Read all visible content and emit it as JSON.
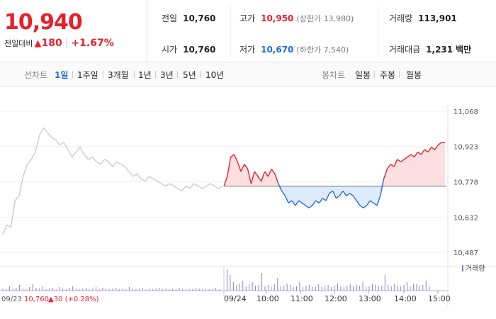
{
  "header": {
    "price": "10,940",
    "change_label": "전일대비",
    "change_arrow": "▲",
    "change_value": "180",
    "change_pct": "+1.67%",
    "prev_close_label": "전일",
    "prev_close": "10,760",
    "open_label": "시가",
    "open": "10,760",
    "high_label": "고가",
    "high": "10,950",
    "upper_limit_label": "(상한가",
    "upper_limit": "13,980)",
    "low_label": "저가",
    "low": "10,670",
    "lower_limit_label": "(하한가",
    "lower_limit": "7,540)",
    "volume_label": "거래량",
    "volume": "113,901",
    "amount_label": "거래대금",
    "amount": "1,231",
    "amount_unit": "백만"
  },
  "tabs": {
    "line_label": "선차트",
    "line_items": [
      "1일",
      "1주일",
      "3개월",
      "1년",
      "3년",
      "5년",
      "10년"
    ],
    "line_active": 0,
    "candle_label": "봉차트",
    "candle_items": [
      "일봉",
      "주봉",
      "월봉"
    ]
  },
  "colors": {
    "up": "#e8202a",
    "down": "#1f6fd6",
    "prev": "#c8c8c8",
    "vol": "#8b7fd6"
  },
  "chart_data": {
    "type": "line",
    "y_ticks": [
      "11,068",
      "10,923",
      "10,778",
      "10,632",
      "10,487"
    ],
    "ylim": [
      10487,
      11068
    ],
    "baseline": 10760,
    "x_ticks": [
      "09/24",
      "10:00",
      "11:00",
      "12:00",
      "13:00",
      "14:00",
      "15:00"
    ],
    "volume_legend": "거래량",
    "prev_day_label_date": "09/23",
    "prev_day_label_value": "10,760",
    "prev_day_label_change": "▲30 (+0.28%)",
    "series": [
      {
        "name": "09/23",
        "values": [
          10560,
          10600,
          10590,
          10700,
          10720,
          10800,
          10850,
          10870,
          10900,
          10970,
          11000,
          10980,
          10960,
          10950,
          10930,
          10940,
          10910,
          10880,
          10900,
          10920,
          10890,
          10870,
          10880,
          10860,
          10850,
          10870,
          10860,
          10840,
          10860,
          10850,
          10840,
          10820,
          10800,
          10810,
          10790,
          10780,
          10800,
          10790,
          10780,
          10770,
          10760,
          10770,
          10760,
          10750,
          10740,
          10760,
          10750,
          10770,
          10760,
          10750,
          10760,
          10770,
          10760,
          10750,
          10760
        ]
      },
      {
        "name": "09/24",
        "values": [
          10760,
          10800,
          10880,
          10890,
          10860,
          10820,
          10850,
          10830,
          10770,
          10820,
          10800,
          10780,
          10820,
          10800,
          10830,
          10810,
          10770,
          10740,
          10720,
          10690,
          10700,
          10680,
          10700,
          10690,
          10680,
          10670,
          10680,
          10700,
          10690,
          10710,
          10700,
          10730,
          10740,
          10710,
          10720,
          10740,
          10720,
          10730,
          10720,
          10700,
          10680,
          10670,
          10680,
          10700,
          10690,
          10680,
          10720,
          10790,
          10830,
          10850,
          10840,
          10870,
          10860,
          10870,
          10880,
          10890,
          10880,
          10900,
          10890,
          10910,
          10900,
          10920,
          10910,
          10930,
          10940,
          10940
        ]
      }
    ]
  }
}
